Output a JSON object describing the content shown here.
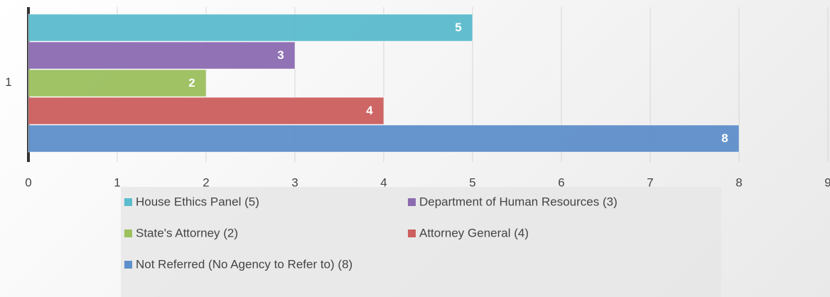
{
  "chart_data": {
    "type": "hbar",
    "categories": [
      "1"
    ],
    "series": [
      {
        "name": "House Ethics Panel (5)",
        "color": "#5bbccd",
        "values": [
          5
        ]
      },
      {
        "name": "Department of Human Resources (3)",
        "color": "#8c6bb1",
        "values": [
          3
        ]
      },
      {
        "name": "State's Attorney (2)",
        "color": "#9cc05e",
        "values": [
          2
        ]
      },
      {
        "name": "Attorney General (4)",
        "color": "#cc5f5f",
        "values": [
          4
        ]
      },
      {
        "name": "Not Referred (No Agency to Refer to) (8)",
        "color": "#5f8fcb",
        "values": [
          8
        ]
      }
    ],
    "xlim": [
      0,
      9
    ],
    "xticks": [
      0,
      1,
      2,
      3,
      4,
      5,
      6,
      7,
      8,
      9
    ],
    "grid": true,
    "legend": "bottom",
    "data_labels": true
  }
}
